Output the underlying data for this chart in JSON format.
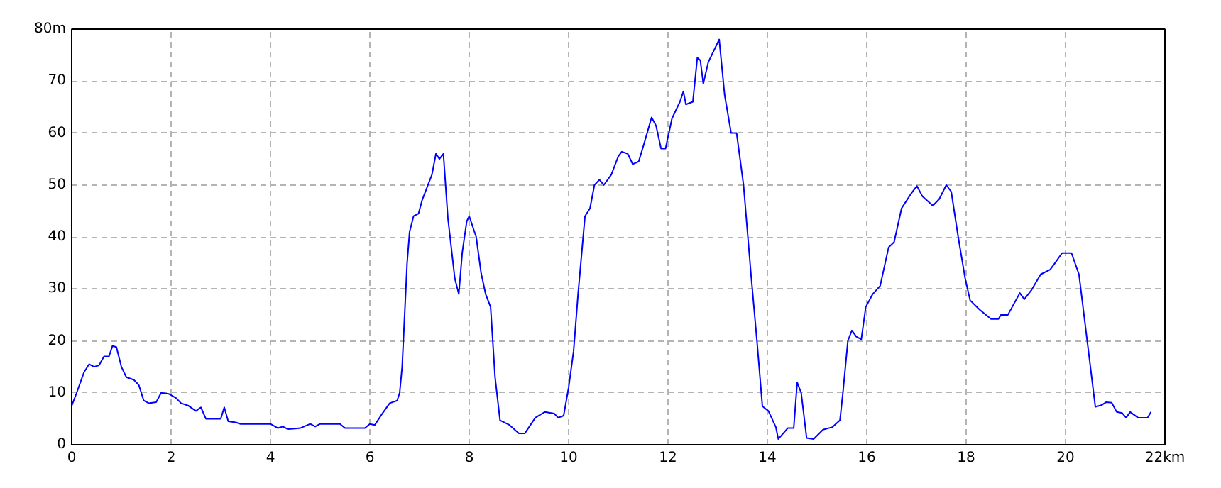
{
  "chart_data": {
    "type": "line",
    "grid": true,
    "line_style": "solid",
    "xlim": [
      0,
      22
    ],
    "ylim": [
      0,
      80
    ],
    "xticks": [
      0,
      2,
      4,
      6,
      8,
      10,
      12,
      14,
      16,
      18,
      20,
      {
        "value": 22,
        "label": "22km"
      }
    ],
    "yticks": [
      0,
      10,
      20,
      30,
      40,
      50,
      60,
      70,
      {
        "value": 80,
        "label": "80m"
      }
    ],
    "series": [
      {
        "color": "#0000ff",
        "x": [
          0,
          0.1,
          0.25,
          0.35,
          0.45,
          0.55,
          0.65,
          0.75,
          0.82,
          0.9,
          1.0,
          1.1,
          1.25,
          1.35,
          1.45,
          1.55,
          1.7,
          1.8,
          1.95,
          2.1,
          2.2,
          2.35,
          2.5,
          2.6,
          2.7,
          3.0,
          3.07,
          3.15,
          3.3,
          3.4,
          4.0,
          4.15,
          4.25,
          4.35,
          4.5,
          4.6,
          4.8,
          4.9,
          5.0,
          5.4,
          5.5,
          5.9,
          6.0,
          6.1,
          6.25,
          6.4,
          6.55,
          6.6,
          6.65,
          6.7,
          6.75,
          6.8,
          6.88,
          6.98,
          7.05,
          7.15,
          7.25,
          7.33,
          7.4,
          7.48,
          7.57,
          7.71,
          7.79,
          7.86,
          7.95,
          8.0,
          8.14,
          8.24,
          8.33,
          8.43,
          8.52,
          8.62,
          8.81,
          9.0,
          9.12,
          9.33,
          9.52,
          9.71,
          9.79,
          9.9,
          10.0,
          10.1,
          10.19,
          10.33,
          10.43,
          10.52,
          10.62,
          10.71,
          10.86,
          11.0,
          11.07,
          11.19,
          11.29,
          11.41,
          11.52,
          11.67,
          11.76,
          11.86,
          11.95,
          12.08,
          12.24,
          12.31,
          12.36,
          12.5,
          12.59,
          12.65,
          12.71,
          12.81,
          12.93,
          13.03,
          13.14,
          13.27,
          13.38,
          13.52,
          13.67,
          13.79,
          13.9,
          14.02,
          14.17,
          14.22,
          14.41,
          14.53,
          14.6,
          14.68,
          14.79,
          14.93,
          15.12,
          15.31,
          15.46,
          15.52,
          15.62,
          15.7,
          15.79,
          15.89,
          15.98,
          16.12,
          16.27,
          16.44,
          16.55,
          16.7,
          16.89,
          17.01,
          17.12,
          17.33,
          17.46,
          17.6,
          17.7,
          17.84,
          17.98,
          18.08,
          18.27,
          18.5,
          18.65,
          18.7,
          18.84,
          19.08,
          19.17,
          19.31,
          19.5,
          19.69,
          19.79,
          19.93,
          20.12,
          20.27,
          20.41,
          20.6,
          20.72,
          20.82,
          20.93,
          21.03,
          21.14,
          21.22,
          21.3,
          21.46,
          21.65,
          21.72
        ],
        "values": [
          7.5,
          10,
          14,
          15.5,
          15,
          15.3,
          17,
          17,
          19,
          18.8,
          15,
          13,
          12.5,
          11.5,
          8.5,
          8,
          8.2,
          10,
          9.8,
          9,
          8,
          7.5,
          6.5,
          7.2,
          5,
          5,
          7.2,
          4.5,
          4.3,
          4,
          4,
          3.2,
          3.5,
          3,
          3.1,
          3.2,
          4,
          3.5,
          4,
          4,
          3.2,
          3.2,
          4,
          3.8,
          6,
          8,
          8.5,
          10,
          15,
          25,
          35,
          41,
          44,
          44.5,
          47,
          49.5,
          52,
          56,
          55,
          56,
          43.7,
          32,
          29,
          37,
          43,
          44,
          40,
          33,
          29,
          26.5,
          13,
          4.7,
          3.8,
          2.2,
          2.2,
          5.2,
          6.3,
          6,
          5.2,
          5.6,
          11,
          18,
          29,
          44,
          45.5,
          50,
          51,
          50,
          52,
          55.5,
          56.4,
          56,
          54,
          54.5,
          58,
          63,
          61.4,
          57,
          57,
          62.8,
          66,
          68,
          65.5,
          66,
          74.5,
          74,
          69.5,
          73.6,
          76,
          78,
          67.3,
          60,
          60,
          50,
          32.8,
          20,
          7.4,
          6.5,
          3.4,
          1.1,
          3.2,
          3.2,
          12,
          10,
          1.3,
          1.1,
          2.9,
          3.4,
          4.7,
          10,
          20,
          22,
          20.8,
          20.3,
          26.5,
          29,
          30.6,
          38,
          39,
          45.5,
          48.3,
          49.8,
          47.8,
          46,
          47.3,
          50,
          48.7,
          40,
          32,
          27.8,
          26,
          24.2,
          24.2,
          25,
          25,
          29.2,
          28,
          29.7,
          32.8,
          33.7,
          35,
          36.9,
          36.9,
          32.8,
          22,
          7.3,
          7.6,
          8.2,
          8.1,
          6.3,
          6.1,
          5.2,
          6.3,
          5.2,
          5.2,
          6.3
        ]
      }
    ]
  }
}
